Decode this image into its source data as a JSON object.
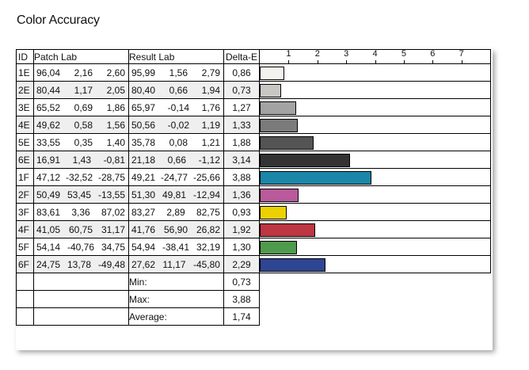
{
  "title": "Color Accuracy",
  "headers": {
    "id": "ID",
    "patch": "Patch Lab",
    "result": "Result Lab",
    "delta": "Delta-E"
  },
  "chart_data": {
    "type": "bar",
    "orientation": "horizontal",
    "xlim": [
      0,
      8
    ],
    "ticks": [
      "1",
      "2",
      "3",
      "4",
      "5",
      "6",
      "7"
    ],
    "rows": [
      {
        "id": "1E",
        "patch": [
          "96,04",
          "2,16",
          "2,60"
        ],
        "result": [
          "95,99",
          "1,56",
          "2,79"
        ],
        "delta": "0,86",
        "value": 0.86,
        "color": "#f4f2ee"
      },
      {
        "id": "2E",
        "patch": [
          "80,44",
          "1,17",
          "2,05"
        ],
        "result": [
          "80,40",
          "0,66",
          "1,94"
        ],
        "delta": "0,73",
        "value": 0.73,
        "color": "#c9c7c3"
      },
      {
        "id": "3E",
        "patch": [
          "65,52",
          "0,69",
          "1,86"
        ],
        "result": [
          "65,97",
          "-0,14",
          "1,76"
        ],
        "delta": "1,27",
        "value": 1.27,
        "color": "#a3a3a3"
      },
      {
        "id": "4E",
        "patch": [
          "49,62",
          "0,58",
          "1,56"
        ],
        "result": [
          "50,56",
          "-0,02",
          "1,19"
        ],
        "delta": "1,33",
        "value": 1.33,
        "color": "#7b7b7b"
      },
      {
        "id": "5E",
        "patch": [
          "33,55",
          "0,35",
          "1,40"
        ],
        "result": [
          "35,78",
          "0,08",
          "1,21"
        ],
        "delta": "1,88",
        "value": 1.88,
        "color": "#545454"
      },
      {
        "id": "6E",
        "patch": [
          "16,91",
          "1,43",
          "-0,81"
        ],
        "result": [
          "21,18",
          "0,66",
          "-1,12"
        ],
        "delta": "3,14",
        "value": 3.14,
        "color": "#333335"
      },
      {
        "id": "1F",
        "patch": [
          "47,12",
          "-32,52",
          "-28,75"
        ],
        "result": [
          "49,21",
          "-24,77",
          "-25,66"
        ],
        "delta": "3,88",
        "value": 3.88,
        "color": "#1b86a8"
      },
      {
        "id": "2F",
        "patch": [
          "50,49",
          "53,45",
          "-13,55"
        ],
        "result": [
          "51,30",
          "49,81",
          "-12,94"
        ],
        "delta": "1,36",
        "value": 1.36,
        "color": "#b85a9b"
      },
      {
        "id": "3F",
        "patch": [
          "83,61",
          "3,36",
          "87,02"
        ],
        "result": [
          "83,27",
          "2,89",
          "82,75"
        ],
        "delta": "0,93",
        "value": 0.93,
        "color": "#ecd000"
      },
      {
        "id": "4F",
        "patch": [
          "41,05",
          "60,75",
          "31,17"
        ],
        "result": [
          "41,76",
          "56,90",
          "26,82"
        ],
        "delta": "1,92",
        "value": 1.92,
        "color": "#bd3642"
      },
      {
        "id": "5F",
        "patch": [
          "54,14",
          "-40,76",
          "34,75"
        ],
        "result": [
          "54,94",
          "-38,41",
          "32,19"
        ],
        "delta": "1,30",
        "value": 1.3,
        "color": "#4f9a4c"
      },
      {
        "id": "6F",
        "patch": [
          "24,75",
          "13,78",
          "-49,48"
        ],
        "result": [
          "27,62",
          "11,17",
          "-45,80"
        ],
        "delta": "2,29",
        "value": 2.29,
        "color": "#2e4593"
      }
    ],
    "stats": [
      {
        "label": "Min:",
        "value": "0,73"
      },
      {
        "label": "Max:",
        "value": "3,88"
      },
      {
        "label": "Average:",
        "value": "1,74"
      }
    ]
  }
}
